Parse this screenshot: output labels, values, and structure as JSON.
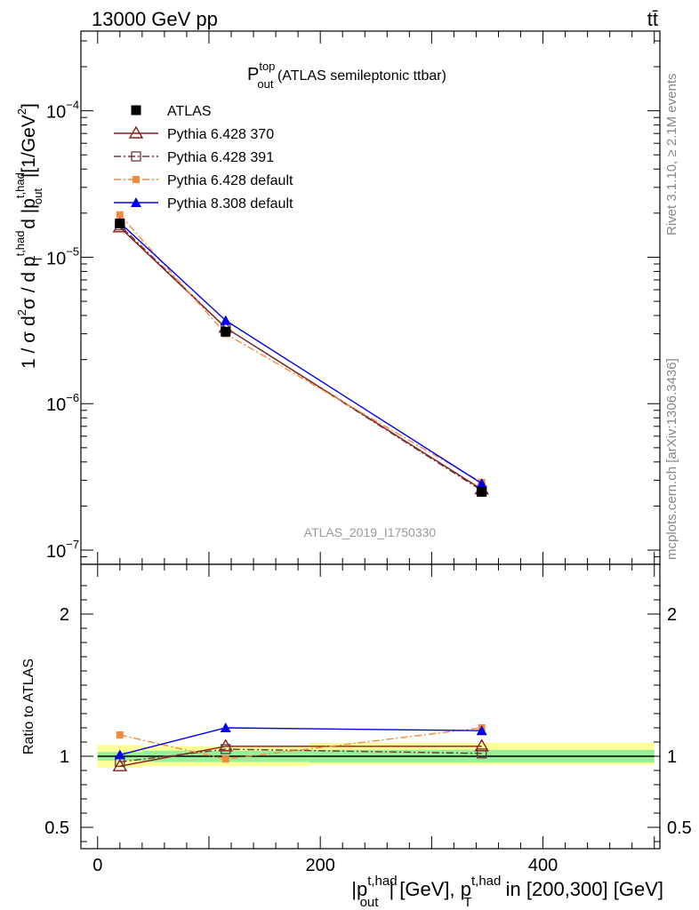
{
  "header": {
    "left": "13000 GeV pp",
    "right": "tt̄"
  },
  "side": {
    "rivet": "Rivet 3.1.10, ≥ 2.1M events",
    "mcplots": "mcplots.cern.ch [arXiv:1306.3436]"
  },
  "watermark": "ATLAS_2019_I1750330",
  "colors": {
    "atlas": "#000000",
    "p370": "#8b1a1a",
    "p391": "#6b3a3a",
    "pdef": "#f58a3c",
    "p8": "#0000ee",
    "band_outer": "#ffff99",
    "band_inner": "#99ee99"
  },
  "chart_data": [
    {
      "type": "line",
      "panel": "main",
      "title": "P_out^top (ATLAS semileptonic ttbar)",
      "title_main": "P",
      "title_sup": "top",
      "title_sub": "out",
      "title_rest": " (ATLAS semileptonic ttbar)",
      "ylabel": "1 / σ d²σ / d p_T^{t,had} d |p_out^{t,had}| [1/GeV²]",
      "ylabel_plain": "1 / σ d",
      "ylabel_parts": [
        "1 / σ d",
        "2",
        "σ / d p",
        "t,had",
        "T",
        " d |p",
        "t,had",
        "out",
        "|[1/GeV",
        "2",
        "]"
      ],
      "yscale": "log",
      "ylim": [
        8e-08,
        0.00035
      ],
      "xlim": [
        -15,
        505
      ],
      "yticks": [
        1e-07,
        1e-06,
        1e-05,
        0.0001
      ],
      "ytick_labels": [
        {
          "base": "10",
          "exp": "−7"
        },
        {
          "base": "10",
          "exp": "−6"
        },
        {
          "base": "10",
          "exp": "−5"
        },
        {
          "base": "10",
          "exp": "−4"
        }
      ],
      "x": [
        20,
        115,
        345
      ],
      "series": [
        {
          "name": "ATLAS",
          "values": [
            1.7e-05,
            3.1e-06,
            2.5e-07
          ]
        },
        {
          "name": "Pythia 6.428 370",
          "values": [
            1.6e-05,
            3.3e-06,
            2.6e-07
          ]
        },
        {
          "name": "Pythia 6.428 391",
          "values": [
            1.65e-05,
            3.3e-06,
            2.55e-07
          ]
        },
        {
          "name": "Pythia 6.428 default",
          "values": [
            1.95e-05,
            3e-06,
            2.9e-07
          ]
        },
        {
          "name": "Pythia 8.308 default",
          "values": [
            1.72e-05,
            3.7e-06,
            2.85e-07
          ]
        }
      ],
      "legend_position": "top-left"
    },
    {
      "type": "line",
      "panel": "ratio",
      "ylabel": "Ratio to ATLAS",
      "xlabel_parts": [
        "|p",
        "t,had",
        "out",
        "| [GeV], p",
        "t,had",
        "T",
        " in [200,300] [GeV]"
      ],
      "ylim": [
        0.35,
        2.35
      ],
      "yticks": [
        0.5,
        1,
        2
      ],
      "ytick_labels": [
        "0.5",
        "1",
        "2"
      ],
      "xticks": [
        0,
        200,
        400
      ],
      "xtick_labels": [
        "0",
        "200",
        "400"
      ],
      "x": [
        20,
        115,
        345
      ],
      "bands": [
        {
          "x0": 0,
          "x1": 40,
          "inner": [
            0.97,
            1.03
          ],
          "outer": [
            0.92,
            1.08
          ]
        },
        {
          "x0": 40,
          "x1": 190,
          "inner": [
            0.96,
            1.04
          ],
          "outer": [
            0.93,
            1.07
          ]
        },
        {
          "x0": 190,
          "x1": 500,
          "inner": [
            0.955,
            1.045
          ],
          "outer": [
            0.94,
            1.095
          ]
        }
      ],
      "series": [
        {
          "name": "Pythia 6.428 370",
          "values": [
            0.93,
            1.07,
            1.07
          ]
        },
        {
          "name": "Pythia 6.428 391",
          "values": [
            0.96,
            1.05,
            1.02
          ]
        },
        {
          "name": "Pythia 6.428 default",
          "values": [
            1.15,
            0.98,
            1.2
          ]
        },
        {
          "name": "Pythia 8.308 default",
          "values": [
            1.01,
            1.2,
            1.18
          ]
        }
      ]
    }
  ]
}
